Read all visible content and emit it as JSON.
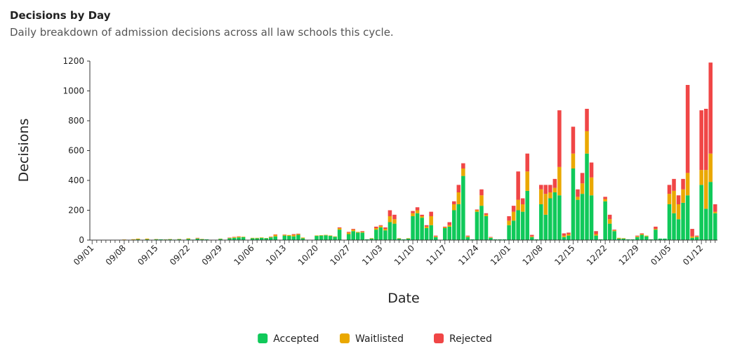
{
  "chart_data": {
    "type": "stacked_bar",
    "title": "Decisions by Day",
    "subtitle": "Daily breakdown of admission decisions across all law schools this cycle.",
    "xlabel": "Date",
    "ylabel": "Decisions",
    "categories": [
      "09/01",
      null,
      null,
      null,
      null,
      null,
      null,
      "09/08",
      null,
      null,
      null,
      null,
      null,
      null,
      "09/15",
      null,
      null,
      null,
      null,
      null,
      null,
      "09/22",
      null,
      null,
      null,
      null,
      null,
      null,
      "09/29",
      null,
      null,
      null,
      null,
      null,
      null,
      "10/06",
      null,
      null,
      null,
      null,
      null,
      null,
      "10/13",
      null,
      null,
      null,
      null,
      null,
      null,
      "10/20",
      null,
      null,
      null,
      null,
      null,
      null,
      "10/27",
      null,
      null,
      null,
      null,
      null,
      null,
      "11/03",
      null,
      null,
      null,
      null,
      null,
      null,
      "11/10",
      null,
      null,
      null,
      null,
      null,
      null,
      "11/17",
      null,
      null,
      null,
      null,
      null,
      null,
      "11/24",
      null,
      null,
      null,
      null,
      null,
      null,
      "12/01",
      null,
      null,
      null,
      null,
      null,
      null,
      "12/08",
      null,
      null,
      null,
      null,
      null,
      null,
      "12/15",
      null,
      null,
      null,
      null,
      null,
      null,
      "12/22",
      null,
      null,
      null,
      null,
      null,
      null,
      "12/29",
      null,
      null,
      null,
      null,
      null,
      null,
      "01/05",
      null,
      null,
      null,
      null,
      null,
      null,
      "01/12",
      null,
      null,
      null
    ],
    "series": [
      {
        "name": "Accepted",
        "color": "#10c95a",
        "values": [
          0,
          0,
          0,
          0,
          0,
          0,
          0,
          2,
          0,
          3,
          5,
          0,
          5,
          0,
          5,
          5,
          4,
          5,
          3,
          6,
          0,
          8,
          3,
          10,
          6,
          5,
          0,
          0,
          8,
          0,
          12,
          15,
          18,
          20,
          0,
          12,
          12,
          15,
          12,
          18,
          25,
          0,
          30,
          28,
          25,
          35,
          12,
          0,
          0,
          28,
          30,
          32,
          28,
          22,
          70,
          0,
          40,
          60,
          50,
          50,
          5,
          10,
          70,
          85,
          65,
          120,
          110,
          10,
          5,
          10,
          160,
          180,
          150,
          80,
          100,
          20,
          0,
          80,
          90,
          200,
          240,
          430,
          20,
          5,
          190,
          230,
          160,
          15,
          5,
          5,
          5,
          100,
          130,
          200,
          190,
          330,
          20,
          5,
          240,
          170,
          280,
          320,
          300,
          20,
          30,
          480,
          270,
          310,
          580,
          300,
          30,
          5,
          260,
          110,
          60,
          10,
          10,
          5,
          5,
          20,
          35,
          25,
          5,
          70,
          10,
          10,
          240,
          180,
          140,
          250,
          300,
          15,
          20,
          370,
          210,
          390,
          180
        ]
      },
      {
        "name": "Waitlisted",
        "color": "#eaa800",
        "values": [
          0,
          0,
          0,
          0,
          0,
          0,
          0,
          2,
          0,
          3,
          5,
          0,
          5,
          0,
          2,
          0,
          1,
          2,
          0,
          2,
          0,
          4,
          0,
          3,
          2,
          0,
          0,
          0,
          2,
          0,
          3,
          5,
          5,
          3,
          0,
          3,
          3,
          3,
          2,
          3,
          10,
          0,
          5,
          6,
          10,
          5,
          5,
          0,
          0,
          3,
          3,
          3,
          3,
          3,
          10,
          0,
          10,
          10,
          5,
          5,
          0,
          3,
          10,
          10,
          10,
          40,
          30,
          3,
          0,
          3,
          20,
          20,
          10,
          10,
          60,
          5,
          0,
          5,
          10,
          40,
          80,
          50,
          5,
          0,
          10,
          70,
          10,
          3,
          0,
          0,
          0,
          30,
          60,
          70,
          50,
          130,
          5,
          0,
          100,
          140,
          40,
          30,
          190,
          10,
          10,
          100,
          20,
          70,
          150,
          120,
          10,
          0,
          15,
          30,
          5,
          5,
          3,
          0,
          0,
          5,
          5,
          5,
          0,
          5,
          0,
          0,
          70,
          150,
          100,
          90,
          150,
          10,
          5,
          100,
          260,
          190,
          10
        ]
      },
      {
        "name": "Rejected",
        "color": "#f04646",
        "values": [
          0,
          0,
          0,
          0,
          0,
          0,
          0,
          0,
          0,
          0,
          0,
          0,
          0,
          0,
          0,
          0,
          0,
          0,
          0,
          0,
          0,
          0,
          0,
          2,
          0,
          0,
          0,
          0,
          0,
          0,
          2,
          2,
          2,
          0,
          0,
          0,
          0,
          0,
          0,
          2,
          3,
          0,
          2,
          0,
          5,
          3,
          0,
          0,
          0,
          0,
          0,
          0,
          0,
          0,
          5,
          0,
          5,
          5,
          0,
          5,
          0,
          0,
          10,
          5,
          10,
          40,
          30,
          0,
          0,
          0,
          15,
          20,
          10,
          10,
          30,
          5,
          0,
          5,
          20,
          20,
          50,
          35,
          5,
          0,
          5,
          40,
          10,
          3,
          0,
          0,
          0,
          30,
          40,
          190,
          40,
          120,
          10,
          0,
          30,
          60,
          50,
          60,
          380,
          15,
          10,
          180,
          50,
          70,
          150,
          100,
          20,
          0,
          15,
          30,
          5,
          0,
          0,
          0,
          0,
          5,
          5,
          0,
          0,
          15,
          0,
          0,
          60,
          80,
          60,
          70,
          590,
          50,
          5,
          400,
          410,
          610,
          50
        ]
      }
    ],
    "ylim": [
      0,
      1200
    ],
    "yticks": [
      0,
      200,
      400,
      600,
      800,
      1000,
      1200
    ],
    "legend": "bottom"
  }
}
